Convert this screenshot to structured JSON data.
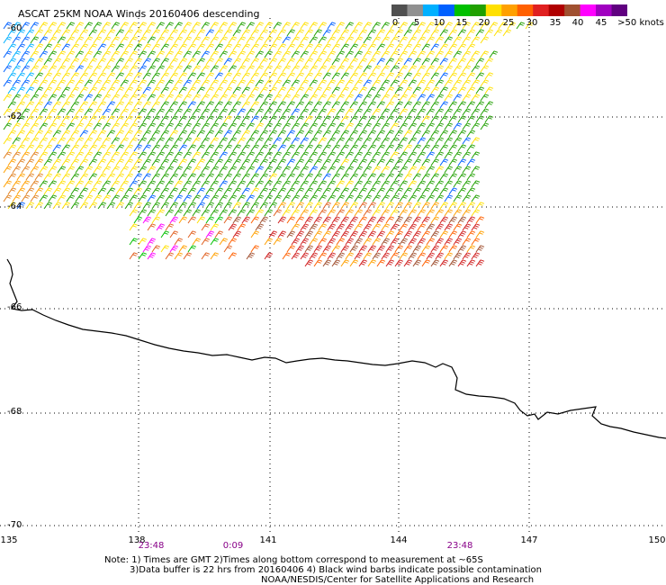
{
  "title": "ASCAT 25KM NOAA Winds 20160406 descending",
  "legend": {
    "colors": [
      "#505050",
      "#909090",
      "#00b0ff",
      "#0060ff",
      "#00c000",
      "#20a000",
      "#ffe000",
      "#ffa000",
      "#ff6000",
      "#e02020",
      "#b00000",
      "#a05030",
      "#ff00ff",
      "#a000c0",
      "#600080"
    ],
    "labels": [
      "0",
      "5",
      "10",
      "15",
      "20",
      "25",
      "30",
      "35",
      "40",
      "45",
      ">50 knots"
    ]
  },
  "lat_labels": [
    "-60",
    "-62",
    "-64",
    "-66",
    "-68",
    "-70"
  ],
  "lon_labels": [
    "135",
    "138",
    "141",
    "144",
    "147",
    "150"
  ],
  "time_labels": [
    "23:48",
    "0:09",
    "23:48"
  ],
  "notes": [
    "Note: 1) Times are GMT 2)Times along bottom correspond to measurement at ~65S",
    "3)Data buffer is 22 hrs from 20160406 4) Black wind barbs indicate possible contamination",
    "NOAA/NESDIS/Center for Satellite Applications and Research"
  ]
}
